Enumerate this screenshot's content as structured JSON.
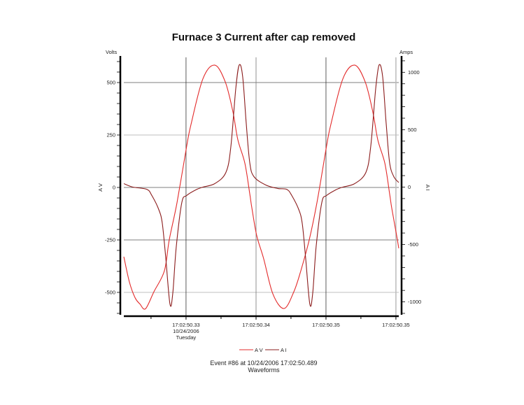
{
  "chart_data": {
    "type": "line",
    "title": "Furnace 3 Current after cap removed",
    "footer": [
      "Event #86 at 10/24/2006 17:02:50.489",
      "Waveforms"
    ],
    "xlabel": "",
    "x_unit": "seconds past 17:02",
    "xlim": [
      50.32592,
      50.35867
    ],
    "x_ticks": [
      {
        "value": 50.33333,
        "label": [
          "17:02:50.33",
          "10/24/2006",
          "Tuesday"
        ]
      },
      {
        "value": 50.34167,
        "label": [
          "17:02:50.34"
        ]
      },
      {
        "value": 50.35,
        "label": [
          "17:02:50.35"
        ]
      },
      {
        "value": 50.35833,
        "label": [
          "17:02:50.35"
        ]
      }
    ],
    "y_left": {
      "label": "A V",
      "unit": "Volts",
      "range": [
        -600,
        620
      ],
      "ticks": [
        500,
        250,
        0,
        -250,
        -500
      ]
    },
    "y_right": {
      "label": "A I",
      "unit": "Amps",
      "range": [
        -1100,
        1130
      ],
      "ticks": [
        1000,
        500,
        0,
        -500,
        -1000
      ]
    },
    "grid": true,
    "legend_placement": "bottom",
    "series": [
      {
        "name": "A V",
        "axis": "left",
        "color": "#e32b2b",
        "x": [
          50.32592,
          50.32658,
          50.32725,
          50.32783,
          50.3285,
          50.3295,
          50.33075,
          50.33133,
          50.33225,
          50.33342,
          50.33392,
          50.33533,
          50.33675,
          50.338,
          50.33892,
          50.3395,
          50.34033,
          50.34092,
          50.34117,
          50.34175,
          50.34258,
          50.34367,
          50.345,
          50.34617,
          50.347,
          50.348,
          50.34892,
          50.35008,
          50.35058,
          50.352,
          50.35342,
          50.35467,
          50.35558,
          50.35617,
          50.357,
          50.35758,
          50.35783,
          50.35842,
          50.35867
        ],
        "y": [
          -330,
          -450,
          -525,
          -555,
          -578,
          -497,
          -397,
          -250,
          -73,
          200,
          300,
          517,
          583,
          503,
          360,
          227,
          117,
          -30,
          -97,
          -230,
          -340,
          -507,
          -577,
          -497,
          -397,
          -250,
          -73,
          200,
          300,
          517,
          583,
          503,
          360,
          227,
          117,
          -30,
          -97,
          -230,
          -290
        ]
      },
      {
        "name": "A I",
        "axis": "right",
        "color": "#8b1c1c",
        "x": [
          50.32592,
          50.327,
          50.32867,
          50.32925,
          50.33008,
          50.3305,
          50.33092,
          50.33142,
          50.33175,
          50.33217,
          50.33283,
          50.33342,
          50.3345,
          50.33533,
          50.33675,
          50.33808,
          50.33867,
          50.33925,
          50.33967,
          50.34008,
          50.3405,
          50.34092,
          50.34142,
          50.34283,
          50.34425,
          50.34533,
          50.34592,
          50.34675,
          50.34717,
          50.34758,
          50.34808,
          50.34842,
          50.34883,
          50.3495,
          50.35008,
          50.35117,
          50.352,
          50.35342,
          50.35475,
          50.35533,
          50.35592,
          50.35633,
          50.35675,
          50.35717,
          50.35758,
          50.35808,
          50.35867
        ],
        "y": [
          30,
          0,
          -20,
          -73,
          -195,
          -316,
          -620,
          -1021,
          -924,
          -517,
          -134,
          -73,
          -24,
          0,
          30,
          128,
          353,
          857,
          1064,
          960,
          553,
          213,
          91,
          18,
          -12,
          -20,
          -73,
          -195,
          -316,
          -620,
          -1021,
          -924,
          -517,
          -134,
          -73,
          -24,
          0,
          30,
          128,
          353,
          857,
          1064,
          960,
          553,
          213,
          91,
          40
        ]
      }
    ]
  }
}
